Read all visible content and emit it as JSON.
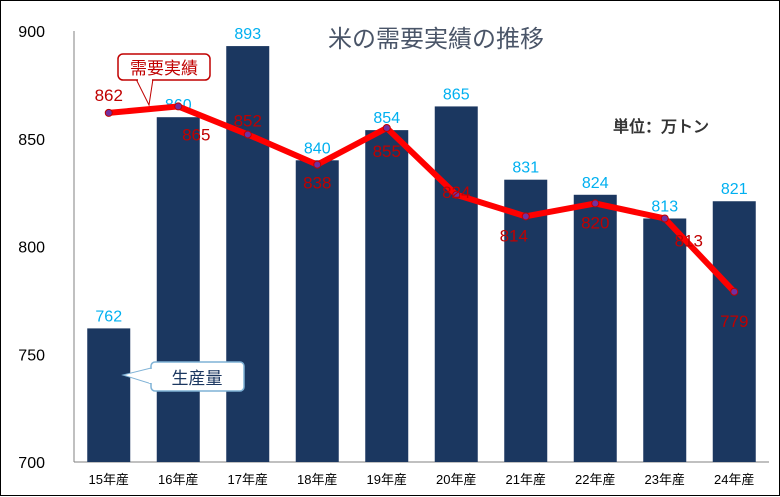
{
  "chart_data": {
    "type": "bar",
    "title": "米の需要実績の推移",
    "unit_note": "単位：万トン",
    "categories": [
      "15年産",
      "16年産",
      "17年産",
      "18年産",
      "19年産",
      "20年産",
      "21年産",
      "22年産",
      "23年産",
      "24年産"
    ],
    "series": [
      {
        "name": "生産量",
        "type": "bar",
        "values": [
          762,
          860,
          893,
          840,
          854,
          865,
          831,
          824,
          813,
          821
        ]
      },
      {
        "name": "需要実績",
        "type": "line",
        "values": [
          862,
          865,
          852,
          838,
          855,
          824,
          814,
          820,
          813,
          779
        ]
      }
    ],
    "yticks": [
      "700",
      "750",
      "800",
      "850",
      "900"
    ],
    "ylim": [
      700,
      900
    ],
    "grid": false,
    "colors": {
      "bar": "#1b3760",
      "line": "#ff0000",
      "marker": "#7030a0",
      "bar_label": "#00b0f0",
      "line_label": "#c00000",
      "title": "#4a5568"
    }
  }
}
